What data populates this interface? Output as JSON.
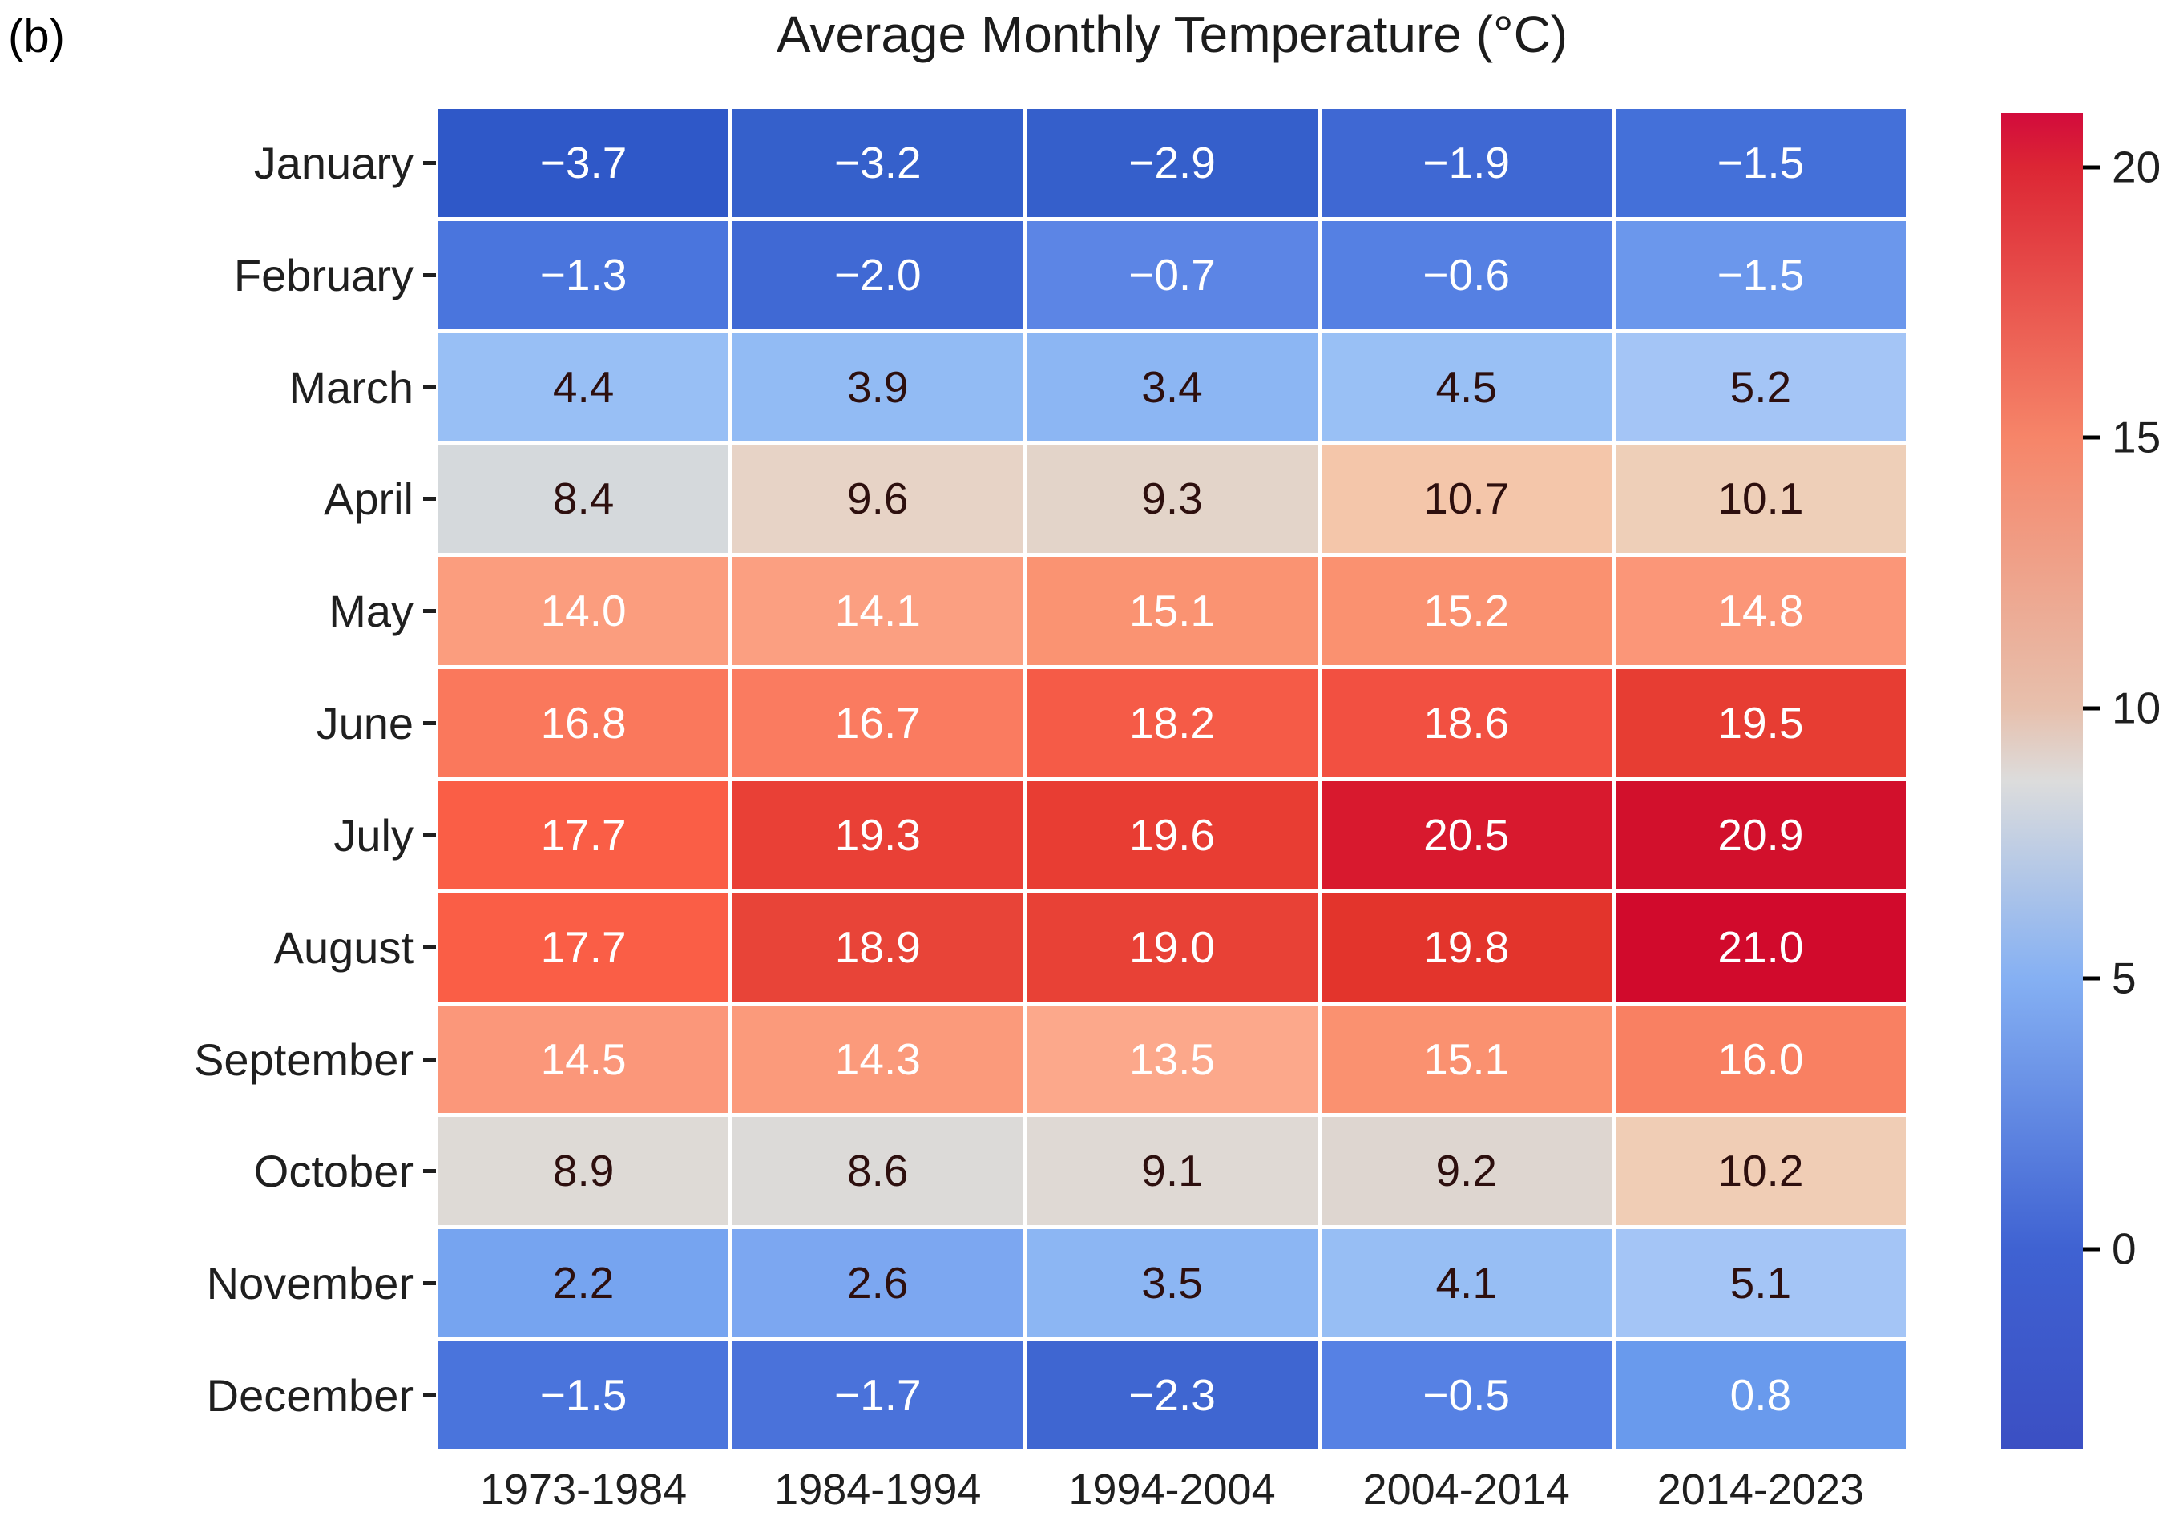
{
  "figure_label": "(b)",
  "title": "Average Monthly Temperature (°C)",
  "chart_data": {
    "type": "heatmap",
    "rows": [
      "January",
      "February",
      "March",
      "April",
      "May",
      "June",
      "July",
      "August",
      "September",
      "October",
      "November",
      "December"
    ],
    "columns": [
      "1973-1984",
      "1984-1994",
      "1994-2004",
      "2004-2014",
      "2014-2023"
    ],
    "unit": "°C",
    "values": [
      [
        -3.7,
        -3.2,
        -2.9,
        -1.9,
        -1.5
      ],
      [
        -1.3,
        -2.0,
        -0.7,
        -0.6,
        -1.5
      ],
      [
        4.4,
        3.9,
        3.4,
        4.5,
        5.2
      ],
      [
        8.4,
        9.6,
        9.3,
        10.7,
        10.1
      ],
      [
        14.0,
        14.1,
        15.1,
        15.2,
        14.8
      ],
      [
        16.8,
        16.7,
        18.2,
        18.6,
        19.5
      ],
      [
        17.7,
        19.3,
        19.6,
        20.5,
        20.9
      ],
      [
        17.7,
        18.9,
        19.0,
        19.8,
        21.0
      ],
      [
        14.5,
        14.3,
        13.5,
        15.1,
        16.0
      ],
      [
        8.9,
        8.6,
        9.1,
        9.2,
        10.2
      ],
      [
        2.2,
        2.6,
        3.5,
        4.1,
        5.1
      ],
      [
        -1.5,
        -1.7,
        -2.3,
        -0.5,
        0.8
      ]
    ],
    "cell_colors": [
      [
        "#2f58c8",
        "#3560cb",
        "#355fcb",
        "#3f68d3",
        "#4470d9"
      ],
      [
        "#4a75dd",
        "#4069d4",
        "#5c85e5",
        "#5580e3",
        "#6b97ec"
      ],
      [
        "#98bff5",
        "#92bbf4",
        "#8cb6f3",
        "#99c0f5",
        "#a4c5f6"
      ],
      [
        "#d5d9dc",
        "#e7d3c6",
        "#e3d4c9",
        "#f4c6aa",
        "#eecfb8"
      ],
      [
        "#fb9d7e",
        "#fb9f81",
        "#fa9372",
        "#fa9170",
        "#fb9678"
      ],
      [
        "#fa785c",
        "#fa7b60",
        "#f55b47",
        "#f25041",
        "#e73d33"
      ],
      [
        "#fa5e46",
        "#e94036",
        "#e83d33",
        "#d8192e",
        "#d2102c"
      ],
      [
        "#fa5e46",
        "#e84438",
        "#e84136",
        "#e3342c",
        "#d10a2c"
      ],
      [
        "#fb977a",
        "#fb9a7b",
        "#fca88b",
        "#fa9170",
        "#f98062"
      ],
      [
        "#dedad6",
        "#dcdad8",
        "#dfd9d4",
        "#ded6d0",
        "#f0cdb5"
      ],
      [
        "#76a4f0",
        "#7ca7f1",
        "#8cb6f3",
        "#97bef4",
        "#a4c5f6"
      ],
      [
        "#4a74dc",
        "#4a72da",
        "#3f66d1",
        "#5681e4",
        "#699aed"
      ]
    ],
    "cell_text": [
      [
        "w",
        "w",
        "w",
        "w",
        "w"
      ],
      [
        "w",
        "w",
        "w",
        "w",
        "w"
      ],
      [
        "d",
        "d",
        "d",
        "d",
        "d"
      ],
      [
        "d",
        "d",
        "d",
        "d",
        "d"
      ],
      [
        "w",
        "w",
        "w",
        "w",
        "w"
      ],
      [
        "w",
        "w",
        "w",
        "w",
        "w"
      ],
      [
        "w",
        "w",
        "w",
        "w",
        "w"
      ],
      [
        "w",
        "w",
        "w",
        "w",
        "w"
      ],
      [
        "w",
        "w",
        "w",
        "w",
        "w"
      ],
      [
        "d",
        "d",
        "d",
        "d",
        "d"
      ],
      [
        "d",
        "d",
        "d",
        "d",
        "d"
      ],
      [
        "w",
        "w",
        "w",
        "w",
        "w"
      ]
    ],
    "text_color_light": "#ffffff",
    "text_color_dark": "#2d0f0e",
    "grid_line_color": "#ffffff",
    "colorbar": {
      "min": -3.7,
      "max": 21.0,
      "ticks": [
        0,
        5,
        10,
        15,
        20
      ],
      "gradient": [
        {
          "value": -3.7,
          "color": "#3b4fc3"
        },
        {
          "value": 0,
          "color": "#3f62d2"
        },
        {
          "value": 5,
          "color": "#85b0f3"
        },
        {
          "value": 8.65,
          "color": "#dcdcdc"
        },
        {
          "value": 10,
          "color": "#e7c0ad"
        },
        {
          "value": 15,
          "color": "#f68569"
        },
        {
          "value": 20,
          "color": "#dc2634"
        },
        {
          "value": 21,
          "color": "#d20b3c"
        }
      ]
    }
  }
}
